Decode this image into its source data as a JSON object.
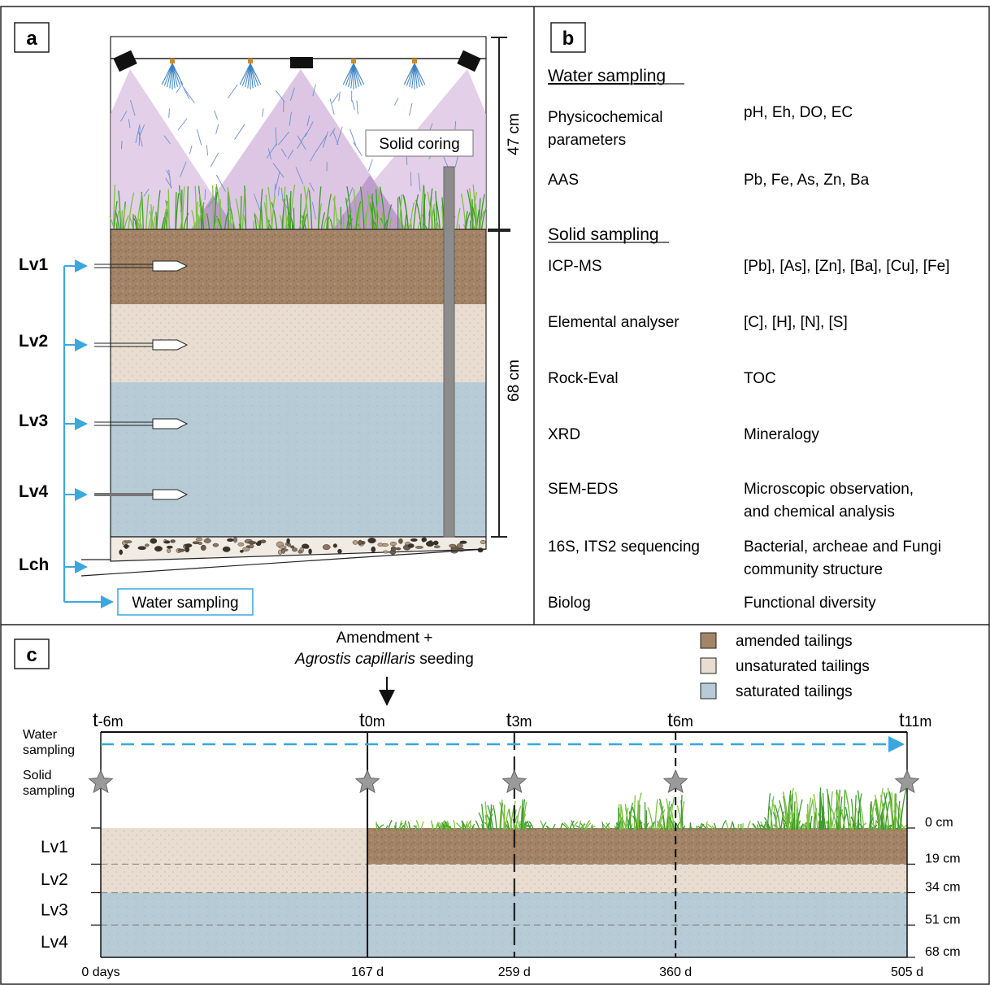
{
  "panel_a": {
    "label": "a",
    "levels": [
      "Lv1",
      "Lv2",
      "Lv3",
      "Lv4",
      "Lch"
    ],
    "dim_top": "47 cm",
    "dim_bottom": "68 cm",
    "solid_coring": "Solid coring",
    "water_sampling": "Water sampling",
    "colors": {
      "amended": "#a38467",
      "unsaturated": "#e8ddd0",
      "saturated": "#b6cbd6",
      "spray": "#d9bfe0",
      "arrow": "#3aa7e0"
    }
  },
  "panel_b": {
    "label": "b",
    "water_heading": "Water  sampling",
    "solid_heading": "Solid sampling",
    "water_rows": [
      {
        "method": [
          "Physicochemical",
          "parameters"
        ],
        "target": [
          "pH, Eh, DO, EC"
        ]
      },
      {
        "method": [
          "AAS"
        ],
        "target": [
          "Pb, Fe, As, Zn, Ba"
        ]
      }
    ],
    "solid_rows": [
      {
        "method": [
          "ICP-MS"
        ],
        "target": [
          "[Pb], [As], [Zn], [Ba], [Cu], [Fe]"
        ]
      },
      {
        "method": [
          "Elemental analyser"
        ],
        "target": [
          "[C], [H], [N], [S]"
        ]
      },
      {
        "method": [
          "Rock-Eval"
        ],
        "target": [
          "TOC"
        ]
      },
      {
        "method": [
          "XRD"
        ],
        "target": [
          "Mineralogy"
        ]
      },
      {
        "method": [
          "SEM-EDS"
        ],
        "target": [
          "Microscopic observation,",
          "and chemical analysis"
        ]
      },
      {
        "method": [
          "16S, ITS2 sequencing"
        ],
        "target": [
          "Bacterial, archeae and Fungi",
          "community structure"
        ]
      },
      {
        "method": [
          "Biolog"
        ],
        "target": [
          "Functional diversity"
        ]
      }
    ]
  },
  "panel_c": {
    "label": "c",
    "amendment_line1": "Amendment +",
    "amendment_italic": "Agrostis capillaris",
    "amendment_rest": " seeding",
    "legend": [
      {
        "label": "amended tailings",
        "color": "#a38467"
      },
      {
        "label": "unsaturated tailings",
        "color": "#e8ddd0"
      },
      {
        "label": "saturated tailings",
        "color": "#b6cbd6"
      }
    ],
    "timepoints": [
      {
        "base": "t",
        "sub": "-6m",
        "day": "0 days"
      },
      {
        "base": "t",
        "sub": "0m",
        "day": "167 d"
      },
      {
        "base": "t",
        "sub": "3m",
        "day": "259 d"
      },
      {
        "base": "t",
        "sub": "6m",
        "day": "360 d"
      },
      {
        "base": "t",
        "sub": "11m",
        "day": "505 d"
      }
    ],
    "days": [
      0,
      167,
      259,
      360,
      505
    ],
    "row_labels": {
      "water": [
        "Water",
        "sampling"
      ],
      "solid": [
        "Solid",
        "sampling"
      ]
    },
    "levels": [
      "Lv1",
      "Lv2",
      "Lv3",
      "Lv4"
    ],
    "depths": [
      "0 cm",
      "19 cm",
      "34 cm",
      "51 cm",
      "68 cm"
    ],
    "depth_values": [
      0,
      19,
      34,
      51,
      68
    ]
  }
}
